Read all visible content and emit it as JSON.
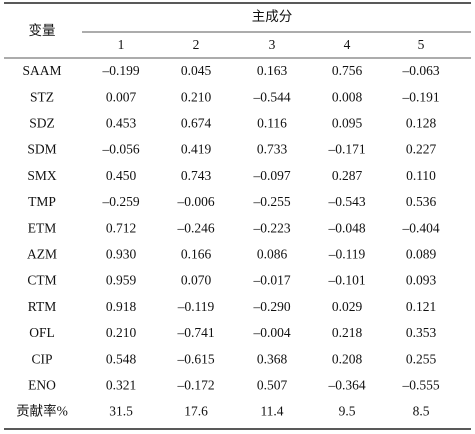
{
  "table": {
    "row_header": "变量",
    "group_header": "主成分",
    "columns": [
      "1",
      "2",
      "3",
      "4",
      "5"
    ],
    "rows": [
      [
        "SAAM",
        "–0.199",
        "0.045",
        "0.163",
        "0.756",
        "–0.063"
      ],
      [
        "STZ",
        "0.007",
        "0.210",
        "–0.544",
        "0.008",
        "–0.191"
      ],
      [
        "SDZ",
        "0.453",
        "0.674",
        "0.116",
        "0.095",
        "0.128"
      ],
      [
        "SDM",
        "–0.056",
        "0.419",
        "0.733",
        "–0.171",
        "0.227"
      ],
      [
        "SMX",
        "0.450",
        "0.743",
        "–0.097",
        "0.287",
        "0.110"
      ],
      [
        "TMP",
        "–0.259",
        "–0.006",
        "–0.255",
        "–0.543",
        "0.536"
      ],
      [
        "ETM",
        "0.712",
        "–0.246",
        "–0.223",
        "–0.048",
        "–0.404"
      ],
      [
        "AZM",
        "0.930",
        "0.166",
        "0.086",
        "–0.119",
        "0.089"
      ],
      [
        "CTM",
        "0.959",
        "0.070",
        "–0.017",
        "–0.101",
        "0.093"
      ],
      [
        "RTM",
        "0.918",
        "–0.119",
        "–0.290",
        "0.029",
        "0.121"
      ],
      [
        "OFL",
        "0.210",
        "–0.741",
        "–0.004",
        "0.218",
        "0.353"
      ],
      [
        "CIP",
        "0.548",
        "–0.615",
        "0.368",
        "0.208",
        "0.255"
      ],
      [
        "ENO",
        "0.321",
        "–0.172",
        "0.507",
        "–0.364",
        "–0.555"
      ],
      [
        "贡献率%",
        "31.5",
        "17.6",
        "11.4",
        "9.5",
        "8.5"
      ]
    ]
  }
}
